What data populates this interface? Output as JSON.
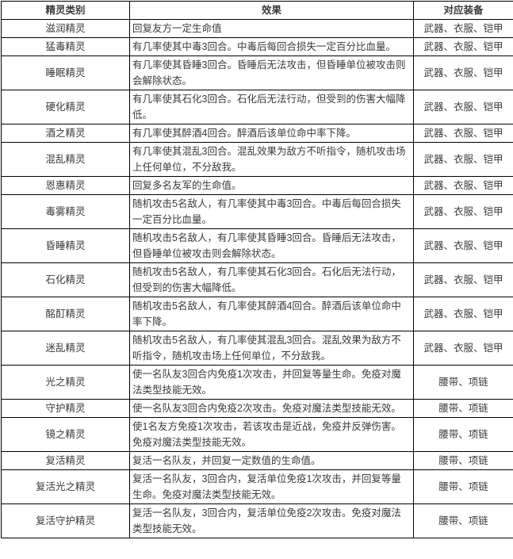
{
  "colors": {
    "border": "#000000",
    "text": "#3a3a3a",
    "background": "#ffffff"
  },
  "table": {
    "headers": {
      "category": "精灵类别",
      "effect": "效果",
      "equipment": "对应装备"
    },
    "rows": [
      {
        "name": "滋润精灵",
        "effect": "回复友方一定生命值",
        "equipment": "武器、衣服、铠甲"
      },
      {
        "name": "猛毒精灵",
        "effect": "有几率使其中毒3回合。中毒后每回合损失一定百分比血量。",
        "equipment": "武器、衣服、铠甲"
      },
      {
        "name": "睡眠精灵",
        "effect": "有几率使其昏睡3回合。昏睡后无法攻击，但昏睡单位被攻击则会解除状态。",
        "equipment": "武器、衣服、铠甲"
      },
      {
        "name": "硬化精灵",
        "effect": "有几率使其石化3回合。石化后无法行动，但受到的伤害大幅降低。",
        "equipment": "武器、衣服、铠甲"
      },
      {
        "name": "酒之精灵",
        "effect": "有几率使其醉酒4回合。醉酒后该单位命中率下降。",
        "equipment": "武器、衣服、铠甲"
      },
      {
        "name": "混乱精灵",
        "effect": "有几率使其混乱3回合。混乱效果为敌方不听指令，随机攻击场上任何单位，不分敌我。",
        "equipment": "武器、衣服、铠甲"
      },
      {
        "name": "恩惠精灵",
        "effect": "回复多名友军的生命值。",
        "equipment": "武器、衣服、铠甲"
      },
      {
        "name": "毒雾精灵",
        "effect": "随机攻击5名敌人，有几率使其中毒3回合。中毒后每回合损失一定百分比血量。",
        "equipment": "武器、衣服、铠甲"
      },
      {
        "name": "昏睡精灵",
        "effect": "随机攻击5名敌人，有几率使其昏睡3回合。昏睡后无法攻击，但昏睡单位被攻击则会解除状态。",
        "equipment": "武器、衣服、铠甲"
      },
      {
        "name": "石化精灵",
        "effect": "随机攻击5名敌人，有几率使其石化3回合。石化后无法行动，但受到的伤害大幅降低。",
        "equipment": "武器、衣服、铠甲"
      },
      {
        "name": "酩酊精灵",
        "effect": "随机攻击5名敌人，有几率使其醉酒4回合。醉酒后该单位命中率下降。",
        "equipment": "武器、衣服、铠甲"
      },
      {
        "name": "迷乱精灵",
        "effect": "随机攻击5名敌人，有几率使其混乱3回合。混乱效果为敌方不听指令，随机攻击场上任何单位，不分敌我。",
        "equipment": "武器、衣服、铠甲"
      },
      {
        "name": "光之精灵",
        "effect": "使一名队友3回合内免疫1次攻击，并回复等量生命。免疫对魔法类型技能无效。",
        "equipment": "腰带、项链"
      },
      {
        "name": "守护精灵",
        "effect": "使一名队友3回合内免疫2次攻击。免疫对魔法类型技能无效。",
        "equipment": "腰带、项链"
      },
      {
        "name": "镜之精灵",
        "effect": "使1名友方免疫1次攻击，若该攻击是近战，免疫并反弹伤害。免疫对魔法类型技能无效。",
        "equipment": "腰带、项链"
      },
      {
        "name": "复活精灵",
        "effect": "复活一名队友，并回复一定数值的生命值。",
        "equipment": "腰带、项链"
      },
      {
        "name": "复活光之精灵",
        "effect": "复活一名队友，3回合内，复活单位免疫1次攻击，并回复等量生命。免疫对魔法类型技能无效。",
        "equipment": "腰带、项链"
      },
      {
        "name": "复活守护精灵",
        "effect": "复活一名队友，3回合内，复活单位免疫2次攻击。免疫对魔法类型技能无效。",
        "equipment": "腰带、项链"
      }
    ]
  }
}
